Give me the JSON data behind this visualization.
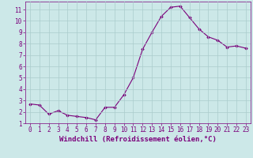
{
  "x": [
    0,
    1,
    2,
    3,
    4,
    5,
    6,
    7,
    8,
    9,
    10,
    11,
    12,
    13,
    14,
    15,
    16,
    17,
    18,
    19,
    20,
    21,
    22,
    23
  ],
  "y": [
    2.7,
    2.6,
    1.8,
    2.1,
    1.7,
    1.6,
    1.5,
    1.3,
    2.4,
    2.4,
    3.5,
    5.0,
    7.5,
    9.0,
    10.4,
    11.2,
    11.3,
    10.3,
    9.3,
    8.6,
    8.3,
    7.7,
    7.8,
    7.6
  ],
  "line_color": "#7b007b",
  "marker": "D",
  "marker_size": 1.8,
  "xlabel": "Windchill (Refroidissement éolien,°C)",
  "xlim": [
    -0.5,
    23.5
  ],
  "ylim": [
    1.0,
    11.7
  ],
  "yticks": [
    1,
    2,
    3,
    4,
    5,
    6,
    7,
    8,
    9,
    10,
    11
  ],
  "xticks": [
    0,
    1,
    2,
    3,
    4,
    5,
    6,
    7,
    8,
    9,
    10,
    11,
    12,
    13,
    14,
    15,
    16,
    17,
    18,
    19,
    20,
    21,
    22,
    23
  ],
  "background_color": "#cce8e8",
  "grid_color": "#aacccc",
  "tick_color": "#7b007b",
  "tick_fontsize": 5.5,
  "xlabel_fontsize": 6.5,
  "line_width": 0.8
}
